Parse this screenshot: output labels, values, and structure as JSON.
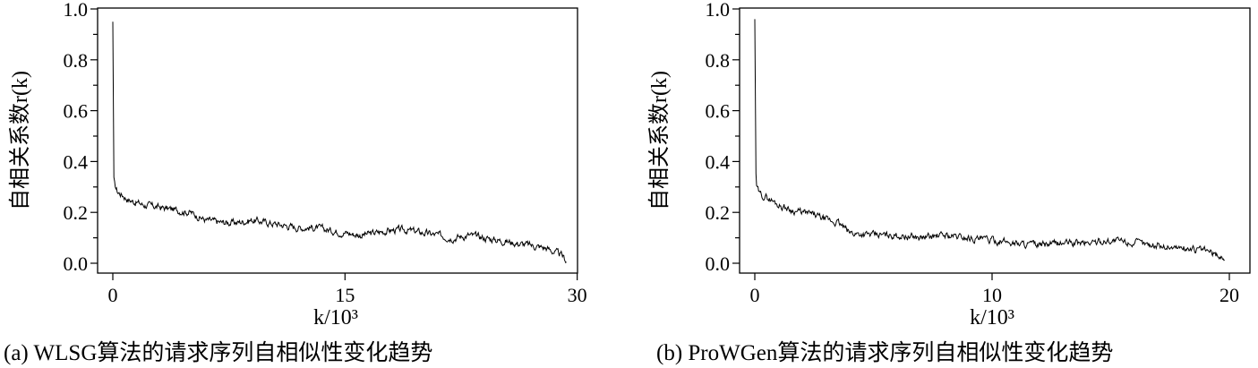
{
  "chart_data": [
    {
      "type": "line",
      "caption": "(a) WLSG算法的请求序列自相似性变化趋势",
      "xlabel": "k/10³",
      "ylabel": "自相关系数r(k)",
      "xlim": [
        0,
        29.5
      ],
      "ylim": [
        0.0,
        1.0
      ],
      "xticks": [
        0,
        15,
        30
      ],
      "xtick_labels": [
        "0",
        "15",
        "30"
      ],
      "yticks": [
        0.0,
        0.2,
        0.4,
        0.6,
        0.8,
        1.0
      ],
      "ytick_labels": [
        "0.0",
        "0.2",
        "0.4",
        "0.6",
        "0.8",
        "1.0"
      ],
      "grid": false,
      "series": [
        {
          "x": [
            0,
            0.03,
            0.1,
            0.3,
            0.6,
            1,
            2,
            3,
            4,
            5,
            6,
            7,
            8,
            9,
            10,
            11,
            12,
            13,
            14,
            15,
            16,
            17,
            18,
            19,
            20,
            21,
            22,
            23,
            24,
            25,
            26,
            27,
            28,
            29,
            29.3
          ],
          "y": [
            0.95,
            0.38,
            0.31,
            0.28,
            0.27,
            0.25,
            0.23,
            0.22,
            0.21,
            0.2,
            0.17,
            0.16,
            0.16,
            0.17,
            0.16,
            0.15,
            0.14,
            0.14,
            0.13,
            0.12,
            0.11,
            0.12,
            0.13,
            0.13,
            0.12,
            0.11,
            0.1,
            0.11,
            0.1,
            0.09,
            0.08,
            0.07,
            0.06,
            0.03,
            0.01
          ]
        }
      ]
    },
    {
      "type": "line",
      "caption": "(b) ProWGen算法的请求序列自相似性变化趋势",
      "xlabel": "k/10³",
      "ylabel": "自相关系数r(k)",
      "xlim": [
        0,
        20
      ],
      "ylim": [
        0.0,
        1.0
      ],
      "xticks": [
        0,
        10,
        20
      ],
      "xtick_labels": [
        "0",
        "10",
        "20"
      ],
      "yticks": [
        0.0,
        0.2,
        0.4,
        0.6,
        0.8,
        1.0
      ],
      "ytick_labels": [
        "0.0",
        "0.2",
        "0.4",
        "0.6",
        "0.8",
        "1.0"
      ],
      "grid": false,
      "series": [
        {
          "x": [
            0,
            0.02,
            0.08,
            0.2,
            0.5,
            1,
            1.5,
            2,
            2.5,
            3,
            3.5,
            4,
            5,
            6,
            7,
            8,
            9,
            10,
            11,
            12,
            13,
            14,
            15,
            16,
            17,
            18,
            19,
            19.8
          ],
          "y": [
            0.96,
            0.4,
            0.3,
            0.27,
            0.26,
            0.23,
            0.21,
            0.2,
            0.19,
            0.17,
            0.16,
            0.12,
            0.11,
            0.11,
            0.1,
            0.11,
            0.1,
            0.09,
            0.08,
            0.07,
            0.08,
            0.08,
            0.09,
            0.08,
            0.07,
            0.06,
            0.05,
            0.02
          ]
        }
      ]
    }
  ]
}
